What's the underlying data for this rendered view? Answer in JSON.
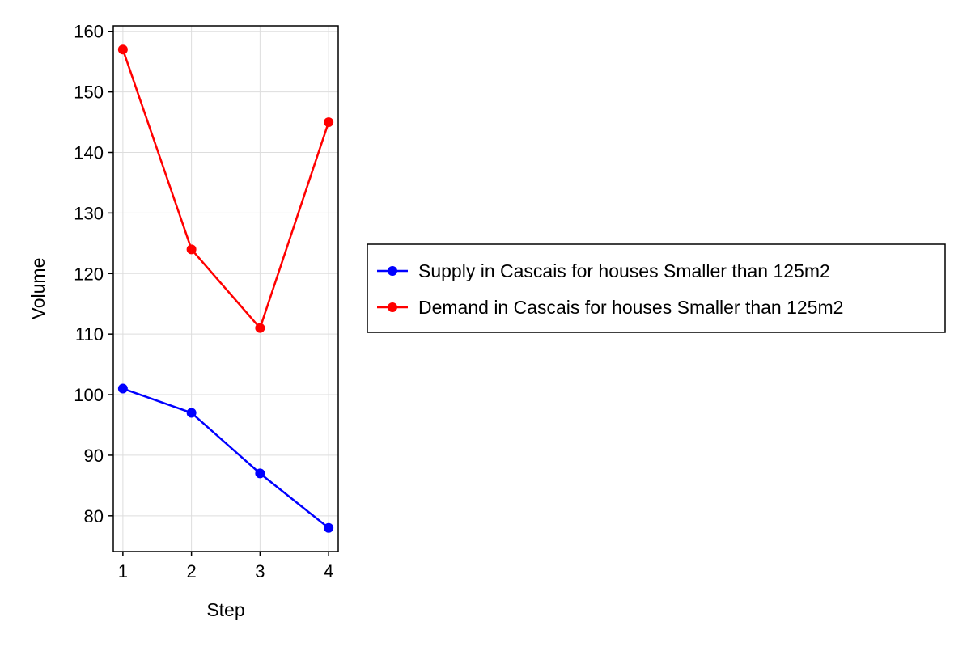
{
  "chart_data": {
    "type": "line",
    "title": "",
    "xlabel": "Step",
    "ylabel": "Volume",
    "x": [
      1,
      2,
      3,
      4
    ],
    "xticks": [
      1,
      2,
      3,
      4
    ],
    "yticks": [
      80,
      90,
      100,
      110,
      120,
      130,
      140,
      150,
      160
    ],
    "xlim": [
      0.86,
      4.14
    ],
    "ylim": [
      74.1,
      160.9
    ],
    "grid": true,
    "legend_position": "right",
    "series": [
      {
        "name": "Supply in Cascais for houses Smaller than 125m2",
        "values": [
          101,
          97,
          87,
          78
        ],
        "color": "#0000ff"
      },
      {
        "name": "Demand in Cascais for houses Smaller than 125m2",
        "values": [
          157,
          124,
          111,
          145
        ],
        "color": "#ff0000"
      }
    ]
  }
}
